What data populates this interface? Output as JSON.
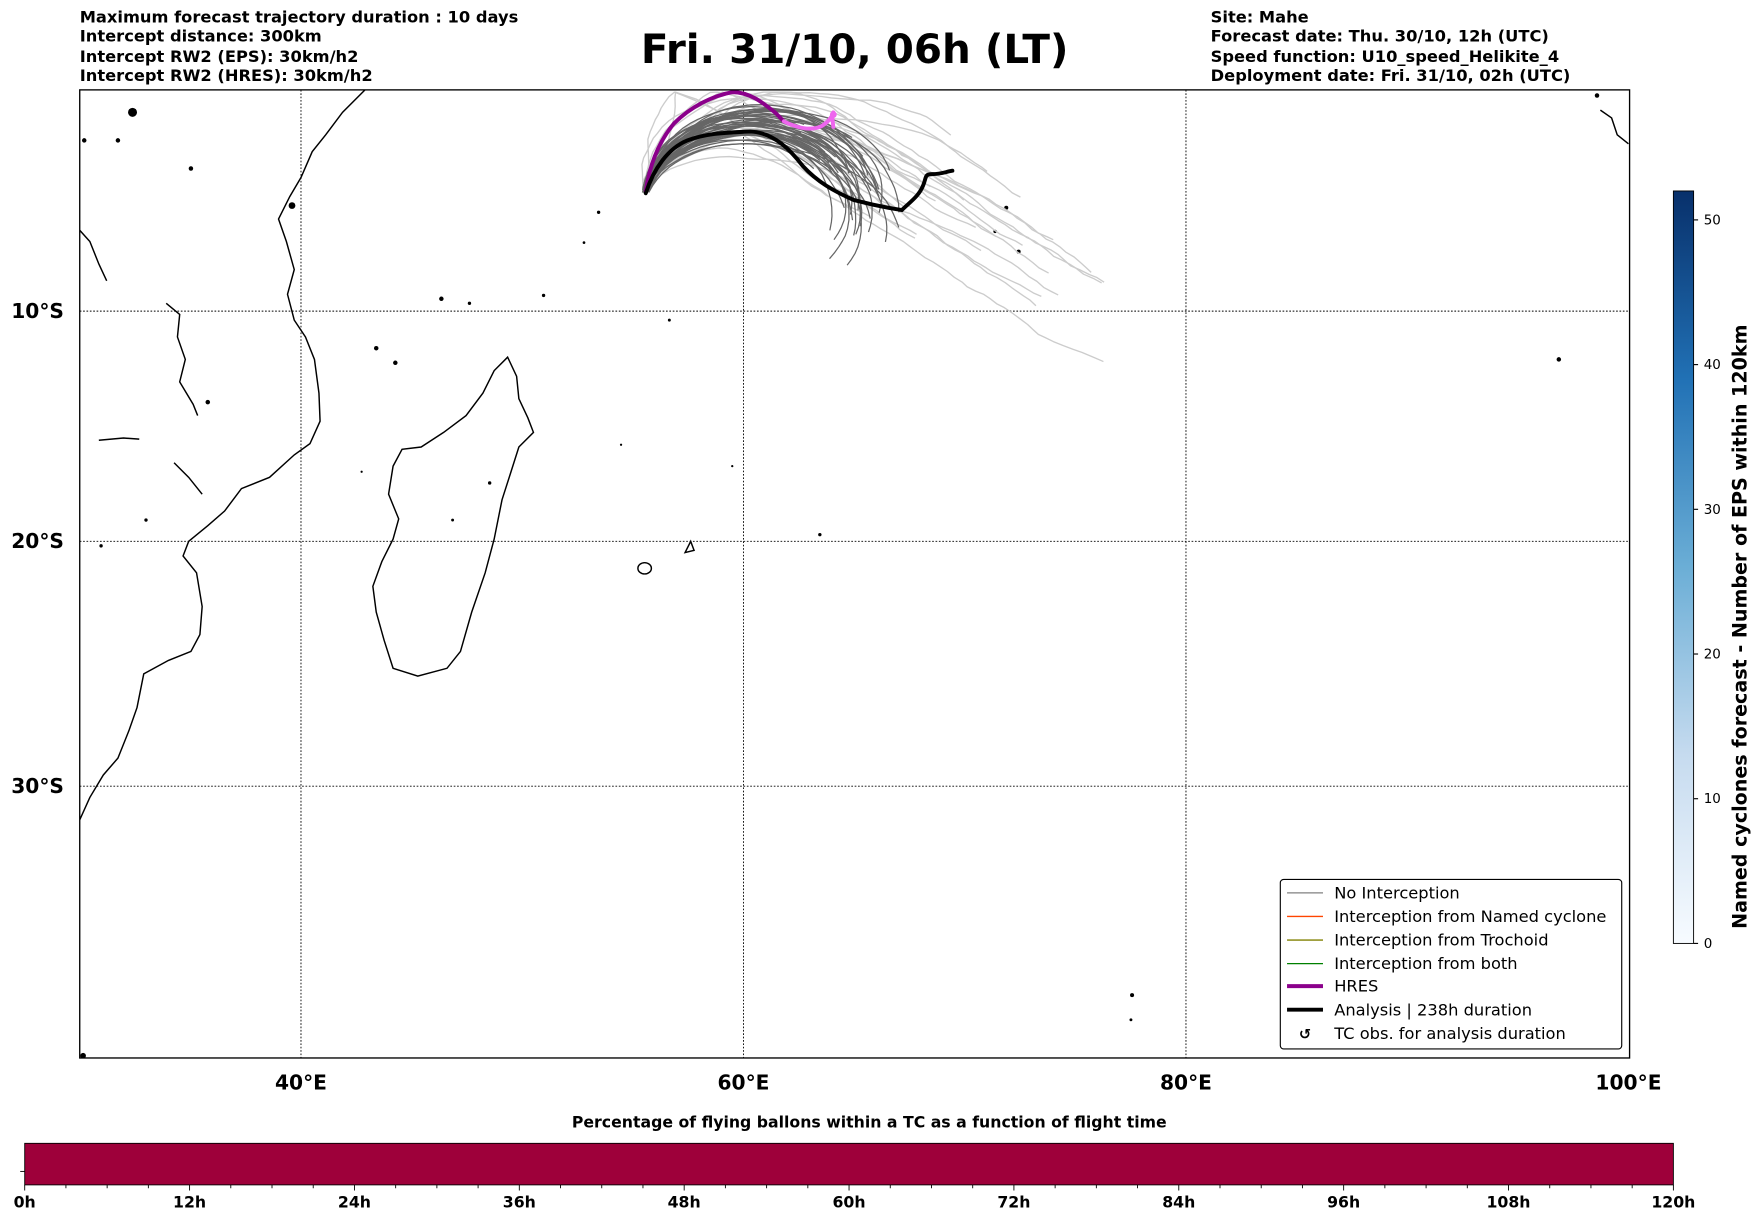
{
  "header": {
    "left_lines": [
      "Maximum forecast trajectory duration : 10 days",
      "Intercept distance: 300km",
      "Intercept RW2 (EPS):  30km/h2",
      "Intercept RW2 (HRES): 30km/h2"
    ],
    "title": "Fri. 31/10, 06h (LT)",
    "right_lines": [
      "Site: Mahe",
      "Forecast date: Thu. 30/10, 12h (UTC)",
      "Speed function: U10_speed_Helikite_4",
      "Deployment date: Fri. 31/10, 02h (UTC)"
    ]
  },
  "map": {
    "lon_labels": [
      "40°E",
      "60°E",
      "80°E",
      "100°E"
    ],
    "lat_labels": [
      "10°S",
      "20°S",
      "30°S"
    ],
    "colors": {
      "hres": "#8b008b",
      "hres_tail": "#ee66ee",
      "analysis": "#000000",
      "no_interception": "#666666",
      "light": "#cccccc"
    }
  },
  "legend": {
    "items": [
      {
        "label": "No Interception",
        "color": "#808080"
      },
      {
        "label": "Interception from Named cyclone",
        "color": "#ff4500"
      },
      {
        "label": "Interception from Trochoid",
        "color": "#808000"
      },
      {
        "label": "Interception from both",
        "color": "#008000"
      },
      {
        "label": "HRES",
        "color": "#8b008b"
      },
      {
        "label": "Analysis | 238h duration",
        "color": "#000000"
      },
      {
        "label": "TC obs. for analysis duration",
        "icon": "cyclone-symbol"
      }
    ]
  },
  "colorbar": {
    "label": "Named cyclones forecast - Number of EPS within 120km",
    "ticks": [
      "0",
      "10",
      "20",
      "30",
      "40",
      "50"
    ],
    "min": 0,
    "max": 52
  },
  "timebar": {
    "title": "Percentage of flying ballons within a TC as a function of flight time",
    "ticks": [
      "0h",
      "12h",
      "24h",
      "36h",
      "48h",
      "60h",
      "72h",
      "84h",
      "96h",
      "108h",
      "120h"
    ],
    "color": "#9e003a",
    "percent": 0
  }
}
